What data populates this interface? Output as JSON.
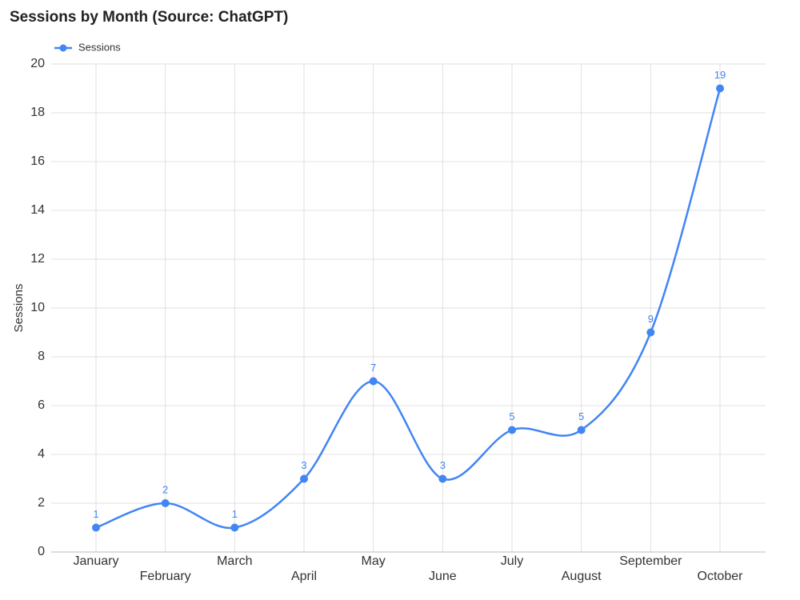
{
  "chart_data": {
    "type": "line",
    "title": "Sessions by Month (Source: ChatGPT)",
    "y_label": "Sessions",
    "categories": [
      "January",
      "February",
      "March",
      "April",
      "May",
      "June",
      "July",
      "August",
      "September",
      "October"
    ],
    "series": [
      {
        "name": "Sessions",
        "color": "#4285f4",
        "values": [
          1,
          2,
          1,
          3,
          7,
          3,
          5,
          5,
          9,
          19
        ]
      }
    ],
    "ylim": [
      0,
      20
    ],
    "yticks": [
      0,
      2,
      4,
      6,
      8,
      10,
      12,
      14,
      16,
      18,
      20
    ],
    "grid": true,
    "smooth": true,
    "legend": "top-left"
  }
}
